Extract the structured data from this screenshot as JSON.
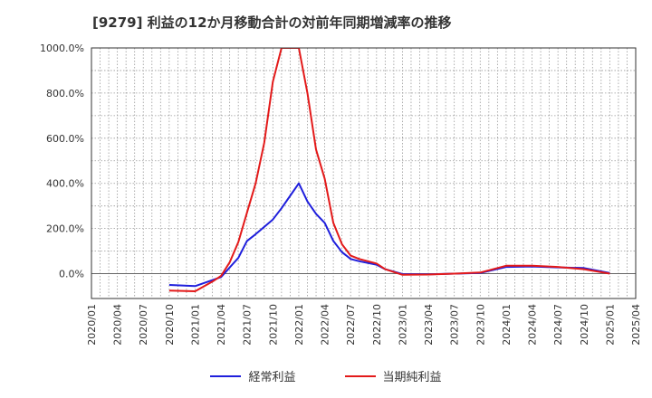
{
  "chart_data": {
    "type": "line",
    "title": "[9279]  利益の12か月移動合計の対前年同期増減率の推移",
    "x_ticks": [
      "2020/01",
      "2020/04",
      "2020/07",
      "2020/10",
      "2021/01",
      "2021/04",
      "2021/07",
      "2021/10",
      "2022/01",
      "2022/04",
      "2022/07",
      "2022/10",
      "2023/01",
      "2023/04",
      "2023/07",
      "2023/10",
      "2024/01",
      "2024/04",
      "2024/07",
      "2024/10",
      "2025/01",
      "2025/04"
    ],
    "y_ticks": [
      "0.0%",
      "200.0%",
      "400.0%",
      "600.0%",
      "800.0%",
      "1000.0%"
    ],
    "ylim": [
      -110,
      1000
    ],
    "grid": true,
    "legend_position": "bottom-center",
    "series": [
      {
        "name": "経常利益",
        "color": "#1f1fdc",
        "points": [
          [
            "2020/10",
            -50
          ],
          [
            "2021/01",
            -55
          ],
          [
            "2021/04",
            -15
          ],
          [
            "2021/06",
            70
          ],
          [
            "2021/07",
            145
          ],
          [
            "2021/08",
            175
          ],
          [
            "2021/10",
            240
          ],
          [
            "2021/11",
            290
          ],
          [
            "2021/12",
            345
          ],
          [
            "2022/01",
            400
          ],
          [
            "2022/02",
            320
          ],
          [
            "2022/03",
            265
          ],
          [
            "2022/04",
            225
          ],
          [
            "2022/05",
            145
          ],
          [
            "2022/06",
            95
          ],
          [
            "2022/07",
            65
          ],
          [
            "2022/08",
            55
          ],
          [
            "2022/10",
            40
          ],
          [
            "2022/11",
            20
          ],
          [
            "2023/01",
            -2
          ],
          [
            "2023/04",
            -3
          ],
          [
            "2023/07",
            0
          ],
          [
            "2023/10",
            3
          ],
          [
            "2024/01",
            30
          ],
          [
            "2024/04",
            32
          ],
          [
            "2024/07",
            28
          ],
          [
            "2024/10",
            25
          ],
          [
            "2025/01",
            3
          ]
        ]
      },
      {
        "name": "当期純利益",
        "color": "#e31a1a",
        "points": [
          [
            "2020/10",
            -75
          ],
          [
            "2021/01",
            -78
          ],
          [
            "2021/03",
            -35
          ],
          [
            "2021/04",
            -10
          ],
          [
            "2021/05",
            50
          ],
          [
            "2021/06",
            140
          ],
          [
            "2021/07",
            270
          ],
          [
            "2021/08",
            400
          ],
          [
            "2021/09",
            580
          ],
          [
            "2021/10",
            850
          ],
          [
            "2021/11",
            1000
          ],
          [
            "2022/01",
            1000
          ],
          [
            "2022/02",
            800
          ],
          [
            "2022/03",
            550
          ],
          [
            "2022/04",
            420
          ],
          [
            "2022/05",
            225
          ],
          [
            "2022/06",
            130
          ],
          [
            "2022/07",
            80
          ],
          [
            "2022/08",
            65
          ],
          [
            "2022/10",
            45
          ],
          [
            "2022/11",
            20
          ],
          [
            "2023/01",
            -5
          ],
          [
            "2023/04",
            -4
          ],
          [
            "2023/07",
            0
          ],
          [
            "2023/10",
            5
          ],
          [
            "2024/01",
            35
          ],
          [
            "2024/04",
            35
          ],
          [
            "2024/07",
            30
          ],
          [
            "2024/10",
            20
          ],
          [
            "2025/01",
            0
          ]
        ]
      }
    ]
  }
}
